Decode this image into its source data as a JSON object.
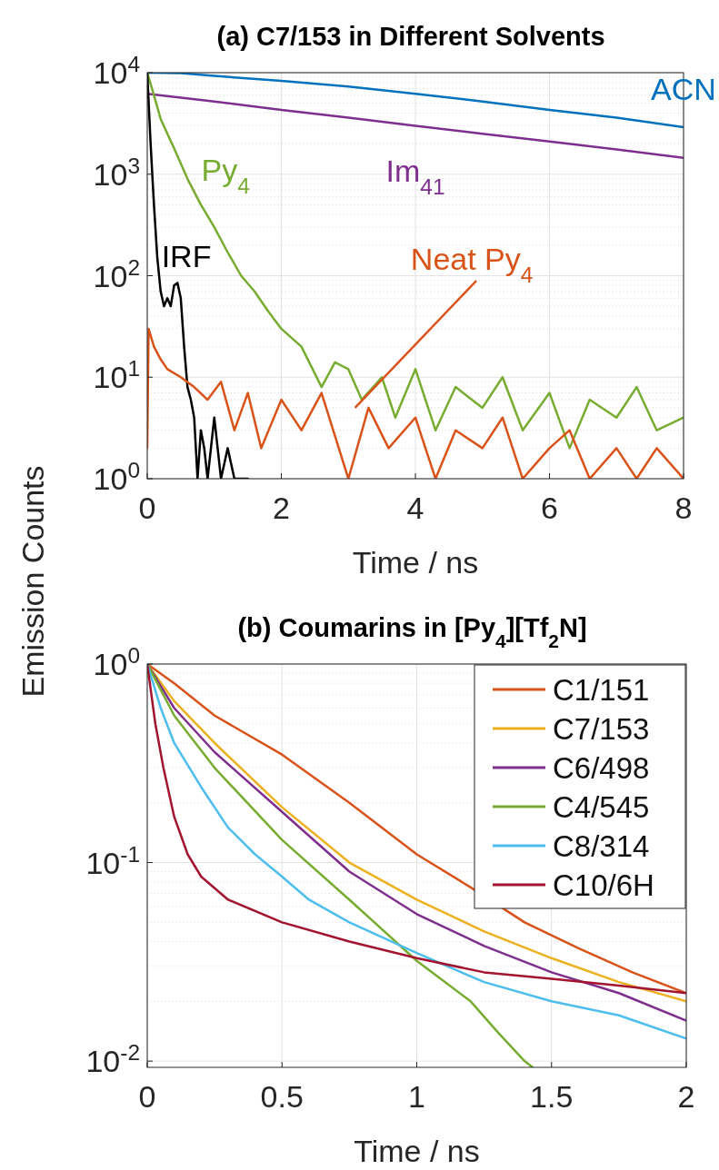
{
  "chart_data": [
    {
      "type": "line",
      "title": "(a) C7/153 in Different Solvents",
      "xlabel": "Time  /  ns",
      "ylabel": "Emission Counts",
      "log": true,
      "grid": true,
      "legend": false,
      "xlim": [
        0,
        8
      ],
      "xticks": [
        0,
        2,
        4,
        6,
        8
      ],
      "ylim": [
        1,
        10000
      ],
      "yticks": [
        {
          "value": 1,
          "label": "10$^{0}$"
        },
        {
          "value": 10,
          "label": "10$^{1}$"
        },
        {
          "value": 100,
          "label": "10$^{2}$"
        },
        {
          "value": 1000,
          "label": "10$^{3}$"
        },
        {
          "value": 10000,
          "label": "10$^{4}$"
        }
      ],
      "series": [
        {
          "name": "ACN",
          "color": "#0072bd",
          "x": [
            0,
            0.5,
            1,
            2,
            3,
            4,
            5,
            6,
            7,
            8
          ],
          "values": [
            10000,
            9900,
            9300,
            8300,
            7300,
            6200,
            5200,
            4300,
            3600,
            2900
          ]
        },
        {
          "name": "Im$_{41}$",
          "color": "#7e2f8e",
          "x": [
            0,
            1,
            2,
            3,
            4,
            5,
            6,
            7,
            8
          ],
          "values": [
            6200,
            5200,
            4300,
            3600,
            3000,
            2500,
            2100,
            1750,
            1450
          ]
        },
        {
          "name": "Py$_{4}$",
          "color": "#77ac30",
          "x": [
            0,
            0.1,
            0.2,
            0.4,
            0.6,
            0.8,
            1,
            1.2,
            1.4,
            1.6,
            1.8,
            2,
            2.3,
            2.6,
            2.8,
            3,
            3.2,
            3.5,
            3.7,
            4,
            4.3,
            4.6,
            5,
            5.3,
            5.6,
            6,
            6.3,
            6.6,
            7,
            7.3,
            7.6,
            8
          ],
          "values": [
            10000,
            6000,
            3500,
            1800,
            900,
            500,
            300,
            170,
            100,
            70,
            45,
            30,
            20,
            8,
            14,
            12,
            6,
            10,
            4,
            12,
            3,
            8,
            5,
            10,
            3,
            7,
            2,
            6,
            4,
            8,
            3,
            4
          ]
        },
        {
          "name": "IRF",
          "color": "#000000",
          "x": [
            0,
            0.05,
            0.1,
            0.15,
            0.2,
            0.25,
            0.3,
            0.35,
            0.4,
            0.45,
            0.5,
            0.55,
            0.6,
            0.65,
            0.7,
            0.75,
            0.8,
            0.85,
            0.9,
            1,
            1.1,
            1.2,
            1.3,
            1.5
          ],
          "values": [
            10000,
            2000,
            500,
            150,
            70,
            50,
            60,
            50,
            80,
            85,
            60,
            20,
            8,
            6,
            4,
            1,
            3,
            2,
            1,
            4,
            1,
            2,
            1,
            1
          ]
        },
        {
          "name": "Neat Py$_{4}$",
          "color": "#d95319",
          "x": [
            0,
            0.02,
            0.1,
            0.2,
            0.3,
            0.5,
            0.7,
            0.9,
            1.1,
            1.3,
            1.5,
            1.7,
            2,
            2.3,
            2.6,
            3,
            3.3,
            3.6,
            4,
            4.3,
            4.6,
            5,
            5.3,
            5.6,
            6,
            6.3,
            6.6,
            7,
            7.3,
            7.6,
            8
          ],
          "values": [
            2,
            30,
            20,
            15,
            12,
            10,
            8,
            6,
            9,
            3,
            7,
            2,
            6,
            3,
            7,
            1,
            5,
            2,
            4,
            1,
            3,
            2,
            4,
            1,
            2,
            3,
            1,
            2,
            1,
            2,
            1
          ]
        }
      ]
    },
    {
      "type": "line",
      "title": "(b) Coumarins in [Py$_{4}$][Tf$_{2}$N]",
      "xlabel": "Time  /  ns",
      "log": true,
      "grid": true,
      "legend": "top right",
      "xlim": [
        0,
        2
      ],
      "xticks": [
        0,
        0.5,
        1,
        1.5,
        2
      ],
      "ylim": [
        0.0093,
        1
      ],
      "yticks": [
        {
          "value": 0.01,
          "label": "10$^{-2}$"
        },
        {
          "value": 0.1,
          "label": "10$^{-1}$"
        },
        {
          "value": 1,
          "label": "10$^{0}$"
        }
      ],
      "series": [
        {
          "name": "C1/151",
          "color": "#d95319",
          "x": [
            0,
            0.1,
            0.25,
            0.5,
            0.75,
            1,
            1.2,
            1.4,
            1.6,
            1.8,
            2
          ],
          "values": [
            1,
            0.8,
            0.55,
            0.35,
            0.2,
            0.11,
            0.075,
            0.05,
            0.037,
            0.028,
            0.022
          ]
        },
        {
          "name": "C7/153",
          "color": "#edb120",
          "x": [
            0,
            0.1,
            0.25,
            0.5,
            0.75,
            1,
            1.25,
            1.5,
            1.75,
            2
          ],
          "values": [
            1,
            0.65,
            0.4,
            0.19,
            0.1,
            0.065,
            0.045,
            0.033,
            0.025,
            0.02
          ]
        },
        {
          "name": "C6/498",
          "color": "#7e2f8e",
          "x": [
            0,
            0.1,
            0.25,
            0.5,
            0.75,
            1,
            1.25,
            1.5,
            1.75,
            2
          ],
          "values": [
            1,
            0.6,
            0.36,
            0.18,
            0.09,
            0.055,
            0.038,
            0.028,
            0.022,
            0.016
          ]
        },
        {
          "name": "C4/545",
          "color": "#77ac30",
          "x": [
            0,
            0.1,
            0.25,
            0.5,
            0.75,
            1,
            1.2,
            1.3,
            1.4,
            1.43
          ],
          "values": [
            1,
            0.55,
            0.3,
            0.13,
            0.065,
            0.032,
            0.02,
            0.014,
            0.01,
            0.0093
          ]
        },
        {
          "name": "C8/314",
          "color": "#4dbeee",
          "x": [
            0,
            0.05,
            0.1,
            0.2,
            0.3,
            0.4,
            0.5,
            0.6,
            0.75,
            1,
            1.25,
            1.5,
            1.75,
            2
          ],
          "values": [
            1,
            0.6,
            0.4,
            0.24,
            0.15,
            0.11,
            0.085,
            0.065,
            0.05,
            0.035,
            0.025,
            0.02,
            0.017,
            0.013
          ]
        },
        {
          "name": "C10/6H",
          "color": "#a2142f",
          "x": [
            0,
            0.03,
            0.06,
            0.1,
            0.15,
            0.2,
            0.3,
            0.5,
            0.75,
            1,
            1.25,
            1.5,
            1.75,
            2
          ],
          "values": [
            1,
            0.5,
            0.3,
            0.17,
            0.11,
            0.085,
            0.065,
            0.05,
            0.04,
            0.033,
            0.028,
            0.026,
            0.024,
            0.022
          ]
        }
      ]
    }
  ]
}
